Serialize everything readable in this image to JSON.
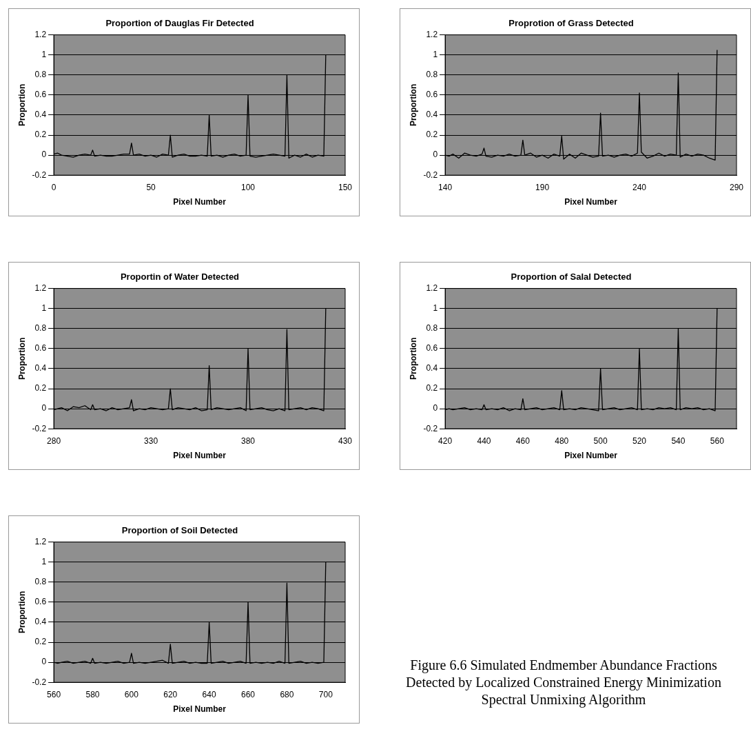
{
  "chart_data": [
    {
      "type": "line",
      "title": "Proportion of Dauglas Fir Detected",
      "xlabel": "Pixel Number",
      "ylabel": "Proportion",
      "color": "#000000",
      "grid": "y",
      "xlim": [
        0,
        150
      ],
      "xticks": [
        0,
        50,
        100,
        150
      ],
      "ylim": [
        -0.2,
        1.2
      ],
      "yticks": [
        -0.2,
        0,
        0.2,
        0.4,
        0.6,
        0.8,
        1,
        1.2
      ],
      "x": [
        0,
        2,
        4,
        7,
        10,
        13,
        16,
        19,
        20,
        21,
        24,
        27,
        30,
        33,
        36,
        39,
        40,
        41,
        44,
        47,
        50,
        53,
        56,
        59,
        60,
        61,
        64,
        67,
        70,
        73,
        76,
        79,
        80,
        81,
        84,
        87,
        90,
        93,
        96,
        99,
        100,
        101,
        104,
        107,
        110,
        113,
        116,
        119,
        120,
        121,
        124,
        127,
        130,
        133,
        136,
        139,
        140
      ],
      "values": [
        0.01,
        0.02,
        0,
        -0.01,
        -0.02,
        0,
        0.01,
        0,
        0.05,
        -0.01,
        0,
        -0.01,
        -0.01,
        0,
        0.01,
        0.01,
        0.12,
        0,
        0.01,
        -0.01,
        0,
        -0.02,
        0.01,
        0,
        0.2,
        -0.02,
        0,
        0.01,
        -0.01,
        -0.01,
        0,
        -0.01,
        0.4,
        -0.01,
        0,
        -0.02,
        0,
        0.01,
        -0.01,
        0,
        0.6,
        -0.01,
        -0.02,
        -0.01,
        0,
        0.01,
        0,
        -0.01,
        0.8,
        -0.03,
        0,
        -0.02,
        0.01,
        -0.02,
        0,
        -0.01,
        1
      ]
    },
    {
      "type": "line",
      "title": "Proprotion of Grass Detected",
      "xlabel": "Pixel Number",
      "ylabel": "Proportion",
      "color": "#000000",
      "grid": "y",
      "xlim": [
        140,
        290
      ],
      "xticks": [
        140,
        190,
        240,
        290
      ],
      "ylim": [
        -0.2,
        1.2
      ],
      "yticks": [
        -0.2,
        0,
        0.2,
        0.4,
        0.6,
        0.8,
        1,
        1.2
      ],
      "x": [
        140,
        142,
        144,
        147,
        150,
        153,
        156,
        159,
        160,
        161,
        164,
        167,
        170,
        173,
        176,
        179,
        180,
        181,
        184,
        187,
        190,
        193,
        196,
        199,
        200,
        201,
        204,
        207,
        210,
        213,
        216,
        219,
        220,
        221,
        224,
        227,
        230,
        233,
        236,
        239,
        240,
        241,
        244,
        247,
        250,
        253,
        256,
        259,
        260,
        261,
        264,
        267,
        270,
        273,
        276,
        279,
        280
      ],
      "values": [
        0,
        -0.01,
        0.01,
        -0.03,
        0.02,
        0,
        -0.01,
        0.01,
        0.07,
        -0.01,
        -0.02,
        0,
        -0.01,
        0.01,
        -0.01,
        0,
        0.15,
        0,
        0.02,
        -0.02,
        0,
        -0.03,
        0.01,
        -0.01,
        0.19,
        -0.04,
        0.01,
        -0.03,
        0.02,
        0,
        -0.02,
        -0.01,
        0.42,
        -0.01,
        0,
        -0.02,
        0,
        0.01,
        -0.01,
        0.02,
        0.62,
        0.03,
        -0.03,
        -0.01,
        0.02,
        -0.01,
        0.01,
        0,
        0.82,
        -0.02,
        0.01,
        -0.01,
        0.01,
        0,
        -0.03,
        -0.05,
        1.05
      ]
    },
    {
      "type": "line",
      "title": "Proportin of Water Detected",
      "xlabel": "Pixel Number",
      "ylabel": "Proportion",
      "color": "#000000",
      "grid": "y",
      "xlim": [
        280,
        430
      ],
      "xticks": [
        280,
        330,
        380,
        430
      ],
      "ylim": [
        -0.2,
        1.2
      ],
      "yticks": [
        -0.2,
        0,
        0.2,
        0.4,
        0.6,
        0.8,
        1,
        1.2
      ],
      "x": [
        280,
        282,
        284,
        287,
        290,
        293,
        296,
        299,
        300,
        301,
        304,
        307,
        310,
        313,
        316,
        319,
        320,
        321,
        324,
        327,
        330,
        333,
        336,
        339,
        340,
        341,
        344,
        347,
        350,
        353,
        356,
        359,
        360,
        361,
        364,
        367,
        370,
        373,
        376,
        379,
        380,
        381,
        384,
        387,
        390,
        393,
        396,
        399,
        400,
        401,
        404,
        407,
        410,
        413,
        416,
        419,
        420
      ],
      "values": [
        -0.01,
        0,
        0.01,
        -0.02,
        0.02,
        0.01,
        0.03,
        -0.01,
        0.04,
        -0.01,
        0,
        -0.02,
        0.01,
        -0.01,
        0,
        0.01,
        0.09,
        -0.02,
        0,
        -0.01,
        0.01,
        0,
        -0.01,
        0,
        0.2,
        -0.01,
        0.01,
        0,
        -0.01,
        0.01,
        -0.02,
        -0.01,
        0.43,
        -0.01,
        0.01,
        0,
        -0.01,
        0,
        0.01,
        -0.02,
        0.6,
        -0.01,
        0,
        0.01,
        -0.01,
        -0.02,
        0,
        -0.02,
        0.79,
        -0.01,
        0,
        0.01,
        -0.01,
        0.01,
        0,
        -0.02,
        1
      ]
    },
    {
      "type": "line",
      "title": "Proportion of Salal Detected",
      "xlabel": "Pixel Number",
      "ylabel": "Proportion",
      "color": "#000000",
      "grid": "y",
      "xlim": [
        420,
        570
      ],
      "xticks": [
        420,
        440,
        460,
        480,
        500,
        520,
        540,
        560
      ],
      "ylim": [
        -0.2,
        1.2
      ],
      "yticks": [
        -0.2,
        0,
        0.2,
        0.4,
        0.6,
        0.8,
        1,
        1.2
      ],
      "x": [
        420,
        422,
        424,
        427,
        430,
        433,
        436,
        439,
        440,
        441,
        444,
        447,
        450,
        453,
        456,
        459,
        460,
        461,
        464,
        467,
        470,
        473,
        476,
        479,
        480,
        481,
        484,
        487,
        490,
        493,
        496,
        499,
        500,
        501,
        504,
        507,
        510,
        513,
        516,
        519,
        520,
        521,
        524,
        527,
        530,
        533,
        536,
        539,
        540,
        541,
        544,
        547,
        550,
        553,
        556,
        559,
        560
      ],
      "values": [
        -0.01,
        0,
        -0.01,
        0,
        0.01,
        -0.01,
        0,
        -0.01,
        0.04,
        -0.01,
        0,
        -0.01,
        0.01,
        -0.02,
        0,
        -0.01,
        0.1,
        -0.01,
        0,
        0.01,
        -0.01,
        0,
        0.01,
        -0.01,
        0.18,
        -0.01,
        0,
        -0.01,
        0.01,
        0,
        -0.01,
        -0.02,
        0.4,
        -0.01,
        0,
        0.01,
        -0.01,
        0,
        0.01,
        -0.01,
        0.6,
        -0.01,
        0,
        -0.01,
        0.01,
        0,
        0.01,
        -0.01,
        0.8,
        -0.01,
        0.01,
        0,
        0.01,
        -0.01,
        0,
        -0.02,
        1
      ]
    },
    {
      "type": "line",
      "title": "Proportion of Soil Detected",
      "xlabel": "Pixel Number",
      "ylabel": "Proportion",
      "color": "#000000",
      "grid": "y",
      "xlim": [
        560,
        710
      ],
      "xticks": [
        560,
        580,
        600,
        620,
        640,
        660,
        680,
        700
      ],
      "ylim": [
        -0.2,
        1.2
      ],
      "yticks": [
        -0.2,
        0,
        0.2,
        0.4,
        0.6,
        0.8,
        1,
        1.2
      ],
      "x": [
        560,
        562,
        564,
        567,
        570,
        573,
        576,
        579,
        580,
        581,
        584,
        587,
        590,
        593,
        596,
        599,
        600,
        601,
        604,
        607,
        610,
        613,
        616,
        619,
        620,
        621,
        624,
        627,
        630,
        633,
        636,
        639,
        640,
        641,
        644,
        647,
        650,
        653,
        656,
        659,
        660,
        661,
        664,
        667,
        670,
        673,
        676,
        679,
        680,
        681,
        684,
        687,
        690,
        693,
        696,
        699,
        700
      ],
      "values": [
        0,
        -0.01,
        0,
        0.01,
        -0.01,
        0,
        0.01,
        -0.01,
        0.04,
        -0.01,
        0,
        -0.01,
        0,
        0.01,
        -0.01,
        0,
        0.09,
        -0.01,
        0,
        -0.01,
        0,
        0.01,
        0.02,
        -0.01,
        0.18,
        -0.01,
        0,
        0.01,
        -0.01,
        0,
        -0.01,
        -0.01,
        0.4,
        -0.01,
        0,
        0.01,
        -0.01,
        0,
        0.01,
        -0.01,
        0.6,
        -0.01,
        0,
        -0.01,
        0,
        -0.01,
        0.01,
        -0.01,
        0.79,
        -0.01,
        0,
        0.01,
        -0.01,
        0,
        -0.01,
        0,
        1
      ]
    },
    {
      "type": "other",
      "annotations": [
        "Figure 6.6 Simulated Endmember Abundance Fractions Detected by Localized Constrained Energy Minimization Spectral Unmixing Algorithm"
      ]
    }
  ]
}
